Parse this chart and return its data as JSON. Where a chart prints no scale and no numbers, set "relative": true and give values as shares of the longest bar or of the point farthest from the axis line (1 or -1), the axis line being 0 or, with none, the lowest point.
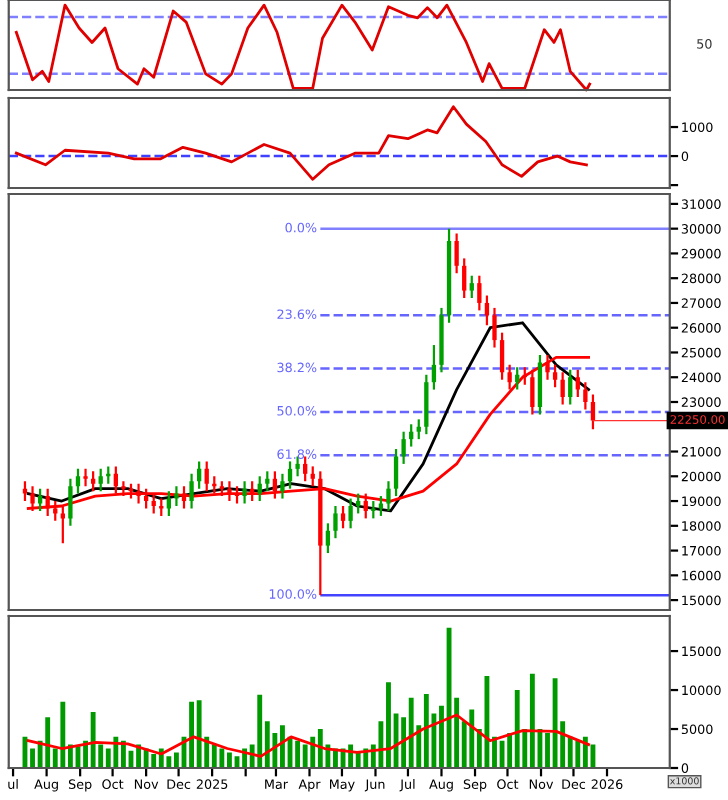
{
  "chart_data": [
    {
      "type": "line",
      "relative": true,
      "tick_labels": false,
      "grid": false,
      "xlim": [
        "2024-06-27",
        "2026-02-28"
      ],
      "ref_lines": [
        {
          "axis": "y",
          "value": 0.86,
          "color": "#8080ff",
          "line_style": "dashed"
        },
        {
          "axis": "y",
          "value": 0.19,
          "color": "#8080ff",
          "line_style": "dashed"
        }
      ],
      "annotations": [
        "50"
      ],
      "series": [
        {
          "color": "#e00000",
          "x": [
            "2024-07-04",
            "2024-07-19",
            "2024-07-28",
            "2024-08-03",
            "2024-08-18",
            "2024-08-31",
            "2024-09-12",
            "2024-09-24",
            "2024-10-06",
            "2024-10-24",
            "2024-10-30",
            "2024-11-08",
            "2024-11-26",
            "2024-12-08",
            "2024-12-26",
            "2025-01-10",
            "2025-01-19",
            "2025-02-03",
            "2025-02-18",
            "2025-03-02",
            "2025-03-17",
            "2025-04-04",
            "2025-04-13",
            "2025-05-01",
            "2025-05-13",
            "2025-05-29",
            "2025-06-13",
            "2025-07-01",
            "2025-07-10",
            "2025-07-19",
            "2025-07-28",
            "2025-08-06",
            "2025-08-24",
            "2025-09-08",
            "2025-09-14",
            "2025-09-26",
            "2025-10-17",
            "2025-11-04",
            "2025-11-13",
            "2025-11-19",
            "2025-11-28",
            "2025-12-13",
            "2025-12-16"
          ],
          "values": [
            0.68,
            0.12,
            0.22,
            0.1,
            1,
            0.73,
            0.56,
            0.73,
            0.25,
            0.07,
            0.25,
            0.15,
            0.93,
            0.8,
            0.19,
            0.07,
            0.19,
            0.73,
            1,
            0.68,
            0.02,
            0.02,
            0.61,
            1,
            0.8,
            0.47,
            0.98,
            0.88,
            0.85,
            0.97,
            0.85,
            1,
            0.56,
            0.1,
            0.31,
            0.02,
            0.02,
            0.71,
            0.56,
            0.71,
            0.22,
            0,
            0.07
          ]
        }
      ]
    },
    {
      "type": "line",
      "tick_labels": "y",
      "grid": false,
      "xlim": [
        "2024-06-27",
        "2026-02-28"
      ],
      "ylim": [
        -1100,
        2000
      ],
      "yticks": [
        {
          "value": -1000,
          "label": null
        },
        0,
        1000
      ],
      "ref_lines": [
        {
          "axis": "y",
          "value": 0,
          "color": "#4040ff",
          "line_style": "dashed"
        }
      ],
      "series": [
        {
          "color": "#e00000",
          "x": [
            "2024-07-04",
            "2024-07-31",
            "2024-08-18",
            "2024-09-27",
            "2024-10-21",
            "2024-11-14",
            "2024-12-05",
            "2024-12-26",
            "2025-01-19",
            "2025-02-18",
            "2025-03-14",
            "2025-04-04",
            "2025-04-19",
            "2025-05-13",
            "2025-06-04",
            "2025-06-13",
            "2025-07-01",
            "2025-07-19",
            "2025-07-28",
            "2025-08-12",
            "2025-08-24",
            "2025-09-11",
            "2025-09-26",
            "2025-10-14",
            "2025-10-29",
            "2025-11-16",
            "2025-11-28",
            "2025-12-13"
          ],
          "values": [
            100,
            -300,
            200,
            100,
            -100,
            -100,
            300,
            100,
            -200,
            400,
            100,
            -800,
            -300,
            100,
            100,
            700,
            600,
            900,
            800,
            1700,
            1100,
            500,
            -300,
            -700,
            -200,
            0,
            -200,
            -300
          ]
        }
      ]
    },
    {
      "type": "candlestick",
      "tick_labels": "y",
      "grid": false,
      "xlim": [
        "2024-06-27",
        "2026-02-28"
      ],
      "ylim": [
        14600,
        31400
      ],
      "yticks": [
        15000,
        16000,
        17000,
        18000,
        19000,
        20000,
        21000,
        {
          "value": 22000,
          "label": null
        },
        23000,
        24000,
        25000,
        26000,
        27000,
        28000,
        29000,
        30000,
        31000
      ],
      "colors": [
        "#ff0000",
        "#ff0000",
        "#00a000",
        "#ff0000",
        "#ff0000",
        "#ff0000",
        "#00a000",
        "#00a000",
        "#ff0000",
        "#ff0000",
        "#00a000",
        "#00a000",
        "#ff0000",
        "#ff0000",
        "#ff0000",
        "#ff0000",
        "#ff0000",
        "#ff0000",
        "#ff0000",
        "#00a000",
        "#00a000",
        "#ff0000",
        "#00a000",
        "#00a000",
        "#ff0000",
        "#ff0000",
        "#ff0000",
        "#ff0000",
        "#ff0000",
        "#00a000",
        "#ff0000",
        "#00a000",
        "#00a000",
        "#ff0000",
        "#00a000",
        "#00a000",
        "#00a000",
        "#ff0000",
        "#ff0000",
        "#ff0000",
        "#00a000",
        "#00a000",
        "#ff0000",
        "#00a000",
        "#00a000",
        "#ff0000",
        "#00a000",
        "#00a000",
        "#00a000",
        "#00a000",
        "#00a000",
        "#00a000",
        "#00a000",
        "#00a000",
        "#00a000",
        "#00a000",
        "#00a000",
        "#ff0000",
        "#ff0000",
        "#00a000",
        "#ff0000",
        "#ff0000",
        "#ff0000",
        "#ff0000",
        "#ff0000",
        "#00a000",
        "#ff0000",
        "#ff0000",
        "#00a000",
        "#ff0000",
        "#ff0000",
        "#ff0000",
        "#00a000",
        "#ff0000",
        "#ff0000",
        "#ff0000"
      ],
      "x": [
        "2024-07-12",
        "2024-07-19",
        "2024-07-26",
        "2024-08-02",
        "2024-08-09",
        "2024-08-16",
        "2024-08-23",
        "2024-08-30",
        "2024-09-06",
        "2024-09-13",
        "2024-09-20",
        "2024-09-27",
        "2024-10-04",
        "2024-10-11",
        "2024-10-18",
        "2024-10-25",
        "2024-11-01",
        "2024-11-08",
        "2024-11-15",
        "2024-11-22",
        "2024-11-29",
        "2024-12-06",
        "2024-12-13",
        "2024-12-20",
        "2024-12-27",
        "2025-01-03",
        "2025-01-10",
        "2025-01-17",
        "2025-01-24",
        "2025-01-31",
        "2025-02-07",
        "2025-02-14",
        "2025-02-21",
        "2025-02-28",
        "2025-03-07",
        "2025-03-14",
        "2025-03-21",
        "2025-03-28",
        "2025-04-04",
        "2025-04-11",
        "2025-04-18",
        "2025-04-25",
        "2025-05-02",
        "2025-05-09",
        "2025-05-16",
        "2025-05-23",
        "2025-05-30",
        "2025-06-06",
        "2025-06-13",
        "2025-06-20",
        "2025-06-27",
        "2025-07-04",
        "2025-07-11",
        "2025-07-18",
        "2025-07-25",
        "2025-08-01",
        "2025-08-08",
        "2025-08-15",
        "2025-08-22",
        "2025-08-29",
        "2025-09-05",
        "2025-09-12",
        "2025-09-19",
        "2025-09-26",
        "2025-10-03",
        "2025-10-10",
        "2025-10-17",
        "2025-10-24",
        "2025-10-31",
        "2025-11-07",
        "2025-11-14",
        "2025-11-21",
        "2025-11-28",
        "2025-12-05",
        "2025-12-12",
        "2025-12-19"
      ],
      "ohlc": [
        [
          19500,
          19800,
          19000,
          19300
        ],
        [
          19300,
          19600,
          18600,
          18900
        ],
        [
          18900,
          19500,
          18600,
          19200
        ],
        [
          19200,
          19500,
          18400,
          18700
        ],
        [
          18700,
          19000,
          18200,
          18500
        ],
        [
          18500,
          18800,
          17300,
          18300
        ],
        [
          18300,
          19900,
          18000,
          19600
        ],
        [
          19600,
          20300,
          19300,
          20000
        ],
        [
          20000,
          20300,
          19600,
          19900
        ],
        [
          19900,
          20200,
          19400,
          19700
        ],
        [
          19700,
          20300,
          19400,
          20000
        ],
        [
          20000,
          20400,
          19700,
          20100
        ],
        [
          20100,
          20400,
          19300,
          19600
        ],
        [
          19600,
          19800,
          19200,
          19500
        ],
        [
          19500,
          19700,
          19100,
          19400
        ],
        [
          19400,
          19700,
          18900,
          19200
        ],
        [
          19200,
          19500,
          18700,
          19000
        ],
        [
          19000,
          19300,
          18500,
          18800
        ],
        [
          18800,
          19100,
          18400,
          18700
        ],
        [
          18700,
          19400,
          18400,
          19100
        ],
        [
          19100,
          19600,
          18800,
          19300
        ],
        [
          19300,
          19600,
          18700,
          19000
        ],
        [
          19000,
          20100,
          18700,
          19800
        ],
        [
          19800,
          20600,
          19500,
          20300
        ],
        [
          20300,
          20600,
          19400,
          19700
        ],
        [
          19700,
          20000,
          19300,
          19600
        ],
        [
          19600,
          19800,
          19200,
          19500
        ],
        [
          19500,
          19800,
          19000,
          19300
        ],
        [
          19300,
          19600,
          18900,
          19200
        ],
        [
          19200,
          19800,
          18900,
          19500
        ],
        [
          19500,
          19800,
          19000,
          19300
        ],
        [
          19300,
          20000,
          19000,
          19700
        ],
        [
          19700,
          20200,
          19400,
          19900
        ],
        [
          19900,
          20200,
          19100,
          19400
        ],
        [
          19400,
          20100,
          19100,
          19800
        ],
        [
          19800,
          20600,
          19500,
          20300
        ],
        [
          20300,
          20800,
          20000,
          20500
        ],
        [
          20500,
          20800,
          19800,
          20100
        ],
        [
          20100,
          20400,
          19600,
          19900
        ],
        [
          19900,
          20200,
          15200,
          17200
        ],
        [
          17200,
          18100,
          16900,
          17800
        ],
        [
          17800,
          18800,
          17500,
          18500
        ],
        [
          18500,
          18800,
          17900,
          18200
        ],
        [
          18200,
          19100,
          17900,
          18800
        ],
        [
          18800,
          19300,
          18500,
          19000
        ],
        [
          19000,
          19300,
          18300,
          18600
        ],
        [
          18600,
          19000,
          18300,
          18700
        ],
        [
          18700,
          19200,
          18400,
          18900
        ],
        [
          18900,
          19800,
          18600,
          19500
        ],
        [
          19500,
          21100,
          19200,
          20800
        ],
        [
          20800,
          21800,
          20500,
          21500
        ],
        [
          21500,
          22100,
          21200,
          21800
        ],
        [
          21800,
          22300,
          21500,
          22000
        ],
        [
          22000,
          24100,
          21700,
          23800
        ],
        [
          23800,
          25300,
          23500,
          24500
        ],
        [
          24500,
          26800,
          24200,
          26500
        ],
        [
          26500,
          30000,
          26200,
          29500
        ],
        [
          29500,
          29800,
          28200,
          28500
        ],
        [
          28500,
          28800,
          27200,
          27500
        ],
        [
          27500,
          28100,
          27200,
          27800
        ],
        [
          27800,
          28100,
          26700,
          27000
        ],
        [
          27000,
          27300,
          26100,
          26500
        ],
        [
          26500,
          26800,
          25200,
          25500
        ],
        [
          25500,
          25800,
          23900,
          24200
        ],
        [
          24200,
          24500,
          23500,
          23800
        ],
        [
          23800,
          24400,
          23500,
          24100
        ],
        [
          24100,
          24400,
          23700,
          24000
        ],
        [
          24000,
          24300,
          22500,
          22800
        ],
        [
          22800,
          24900,
          22500,
          24600
        ],
        [
          24600,
          24900,
          23900,
          24200
        ],
        [
          24200,
          24500,
          23600,
          23900
        ],
        [
          23900,
          24200,
          22900,
          23200
        ],
        [
          23200,
          24300,
          22900,
          24000
        ],
        [
          24000,
          24300,
          23200,
          23500
        ],
        [
          23500,
          23800,
          22700,
          23000
        ],
        [
          23000,
          23300,
          21900,
          22250
        ]
      ],
      "series": [
        {
          "type": "line",
          "color": "#000000",
          "x": [
            "2024-07-15",
            "2024-08-15",
            "2024-09-15",
            "2024-10-15",
            "2024-11-15",
            "2024-12-15",
            "2025-01-15",
            "2025-02-15",
            "2025-03-15",
            "2025-04-15",
            "2025-05-15",
            "2025-06-15",
            "2025-07-15",
            "2025-08-15",
            "2025-09-15",
            "2025-10-15",
            "2025-11-15",
            "2025-12-15"
          ],
          "values": [
            19300,
            19000,
            19500,
            19500,
            19100,
            19300,
            19500,
            19400,
            19700,
            19500,
            18800,
            18600,
            20500,
            23500,
            26000,
            26200,
            24500,
            23500
          ]
        },
        {
          "type": "line",
          "color": "#ff0000",
          "x": [
            "2024-07-15",
            "2024-08-15",
            "2024-09-15",
            "2024-10-15",
            "2024-11-15",
            "2024-12-15",
            "2025-01-15",
            "2025-02-15",
            "2025-03-15",
            "2025-04-15",
            "2025-05-15",
            "2025-06-15",
            "2025-07-15",
            "2025-08-15",
            "2025-09-15",
            "2025-10-15",
            "2025-11-15",
            "2025-12-15"
          ],
          "values": [
            18700,
            18800,
            19200,
            19300,
            19300,
            19200,
            19300,
            19300,
            19400,
            19500,
            19200,
            19000,
            19400,
            20500,
            22500,
            24000,
            24800,
            24800
          ]
        }
      ],
      "ref_lines": [
        {
          "axis": "y",
          "value": 30000,
          "color": "#8080ff",
          "line_style": "solid"
        },
        {
          "axis": "y",
          "value": 26500,
          "color": "#6666ff",
          "line_style": "dashed"
        },
        {
          "axis": "y",
          "value": 24350,
          "color": "#6666ff",
          "line_style": "dashed"
        },
        {
          "axis": "y",
          "value": 22600,
          "color": "#6666ff",
          "line_style": "dashed"
        },
        {
          "axis": "y",
          "value": 20850,
          "color": "#6666ff",
          "line_style": "dashed"
        },
        {
          "axis": "y",
          "value": 15200,
          "color": "#4444ff",
          "line_style": "solid"
        }
      ],
      "annotations": [
        {
          "text": "0.0%",
          "x": "2025-04-11",
          "y": 30000
        },
        {
          "text": "23.6%",
          "x": "2025-04-11",
          "y": 26500
        },
        {
          "text": "38.2%",
          "x": "2025-04-11",
          "y": 24350
        },
        {
          "text": "50.0%",
          "x": "2025-04-11",
          "y": 22600
        },
        {
          "text": "61.8%",
          "x": "2025-04-11",
          "y": 20850
        },
        {
          "text": "100.0%",
          "x": "2025-04-11",
          "y": 15200
        },
        {
          "text": "22250.00",
          "x": "2025-12-19",
          "y": 22250
        }
      ]
    },
    {
      "type": "bar",
      "grid": false,
      "xlim": [
        "2024-06-27",
        "2026-02-28"
      ],
      "ylim": [
        0,
        19500
      ],
      "yticks": [
        0,
        5000,
        10000,
        15000
      ],
      "xticks": [
        {
          "value": "2024-07-01",
          "label": "ul"
        },
        {
          "value": "2024-08-01",
          "label": "Aug"
        },
        {
          "value": "2024-09-01",
          "label": "Sep"
        },
        {
          "value": "2024-10-01",
          "label": "Oct"
        },
        {
          "value": "2024-11-01",
          "label": "Nov"
        },
        {
          "value": "2024-12-01",
          "label": "Dec"
        },
        {
          "value": "2025-01-01",
          "label": "2025"
        },
        {
          "value": "2025-02-01",
          "label": null
        },
        {
          "value": "2025-03-01",
          "label": "Mar"
        },
        {
          "value": "2025-04-01",
          "label": "Apr"
        },
        {
          "value": "2025-05-01",
          "label": "May"
        },
        {
          "value": "2025-06-01",
          "label": "Jun"
        },
        {
          "value": "2025-07-01",
          "label": "Jul"
        },
        {
          "value": "2025-08-01",
          "label": "Aug"
        },
        {
          "value": "2025-09-01",
          "label": "Sep"
        },
        {
          "value": "2025-10-01",
          "label": "Oct"
        },
        {
          "value": "2025-11-01",
          "label": "Nov"
        },
        {
          "value": "2025-12-01",
          "label": "Dec"
        },
        {
          "value": "2026-01-01",
          "label": "2026"
        }
      ],
      "x": [
        "2024-07-12",
        "2024-07-19",
        "2024-07-26",
        "2024-08-02",
        "2024-08-09",
        "2024-08-16",
        "2024-08-23",
        "2024-08-30",
        "2024-09-06",
        "2024-09-13",
        "2024-09-20",
        "2024-09-27",
        "2024-10-04",
        "2024-10-11",
        "2024-10-18",
        "2024-10-25",
        "2024-11-01",
        "2024-11-08",
        "2024-11-15",
        "2024-11-22",
        "2024-11-29",
        "2024-12-06",
        "2024-12-13",
        "2024-12-20",
        "2024-12-27",
        "2025-01-03",
        "2025-01-10",
        "2025-01-17",
        "2025-01-24",
        "2025-01-31",
        "2025-02-07",
        "2025-02-14",
        "2025-02-21",
        "2025-02-28",
        "2025-03-07",
        "2025-03-14",
        "2025-03-21",
        "2025-03-28",
        "2025-04-04",
        "2025-04-11",
        "2025-04-18",
        "2025-04-25",
        "2025-05-02",
        "2025-05-09",
        "2025-05-16",
        "2025-05-23",
        "2025-05-30",
        "2025-06-06",
        "2025-06-13",
        "2025-06-20",
        "2025-06-27",
        "2025-07-04",
        "2025-07-11",
        "2025-07-18",
        "2025-07-25",
        "2025-08-01",
        "2025-08-08",
        "2025-08-15",
        "2025-08-22",
        "2025-08-29",
        "2025-09-05",
        "2025-09-12",
        "2025-09-19",
        "2025-09-26",
        "2025-10-03",
        "2025-10-10",
        "2025-10-17",
        "2025-10-24",
        "2025-10-31",
        "2025-11-07",
        "2025-11-14",
        "2025-11-21",
        "2025-11-28",
        "2025-12-05",
        "2025-12-12",
        "2025-12-19"
      ],
      "series": [
        {
          "color": "#009900",
          "values": [
            4000,
            2500,
            3500,
            6500,
            2500,
            8500,
            3000,
            2800,
            3500,
            7200,
            3000,
            2500,
            4000,
            3500,
            2200,
            3000,
            2500,
            1800,
            2500,
            1500,
            2000,
            4000,
            8500,
            8700,
            4000,
            3000,
            2500,
            2000,
            1500,
            2500,
            3000,
            9400,
            6000,
            4500,
            5500,
            4000,
            3500,
            3000,
            4000,
            5000,
            3000,
            2500,
            2500,
            3000,
            2000,
            2500,
            3000,
            6000,
            11000,
            7000,
            6500,
            9000,
            5500,
            9500,
            7000,
            8000,
            18000,
            9000,
            6000,
            7500,
            5000,
            11800,
            4000,
            3500,
            4500,
            10000,
            5000,
            12100,
            5000,
            4500,
            11500,
            6000,
            4000,
            3500,
            4000,
            3000
          ]
        },
        {
          "type": "line",
          "color": "#ff0000",
          "x": [
            "2024-07-15",
            "2024-08-15",
            "2024-09-15",
            "2024-10-15",
            "2024-11-15",
            "2024-12-15",
            "2025-01-15",
            "2025-02-15",
            "2025-03-15",
            "2025-04-15",
            "2025-05-15",
            "2025-06-15",
            "2025-07-15",
            "2025-08-15",
            "2025-09-15",
            "2025-10-15",
            "2025-11-15",
            "2025-12-15"
          ],
          "values": [
            3500,
            2500,
            3300,
            3100,
            1800,
            4000,
            2500,
            1500,
            4000,
            2500,
            2000,
            2500,
            5000,
            6800,
            3500,
            4800,
            4700,
            3000
          ]
        }
      ],
      "annotations": [
        "x1000"
      ]
    }
  ]
}
